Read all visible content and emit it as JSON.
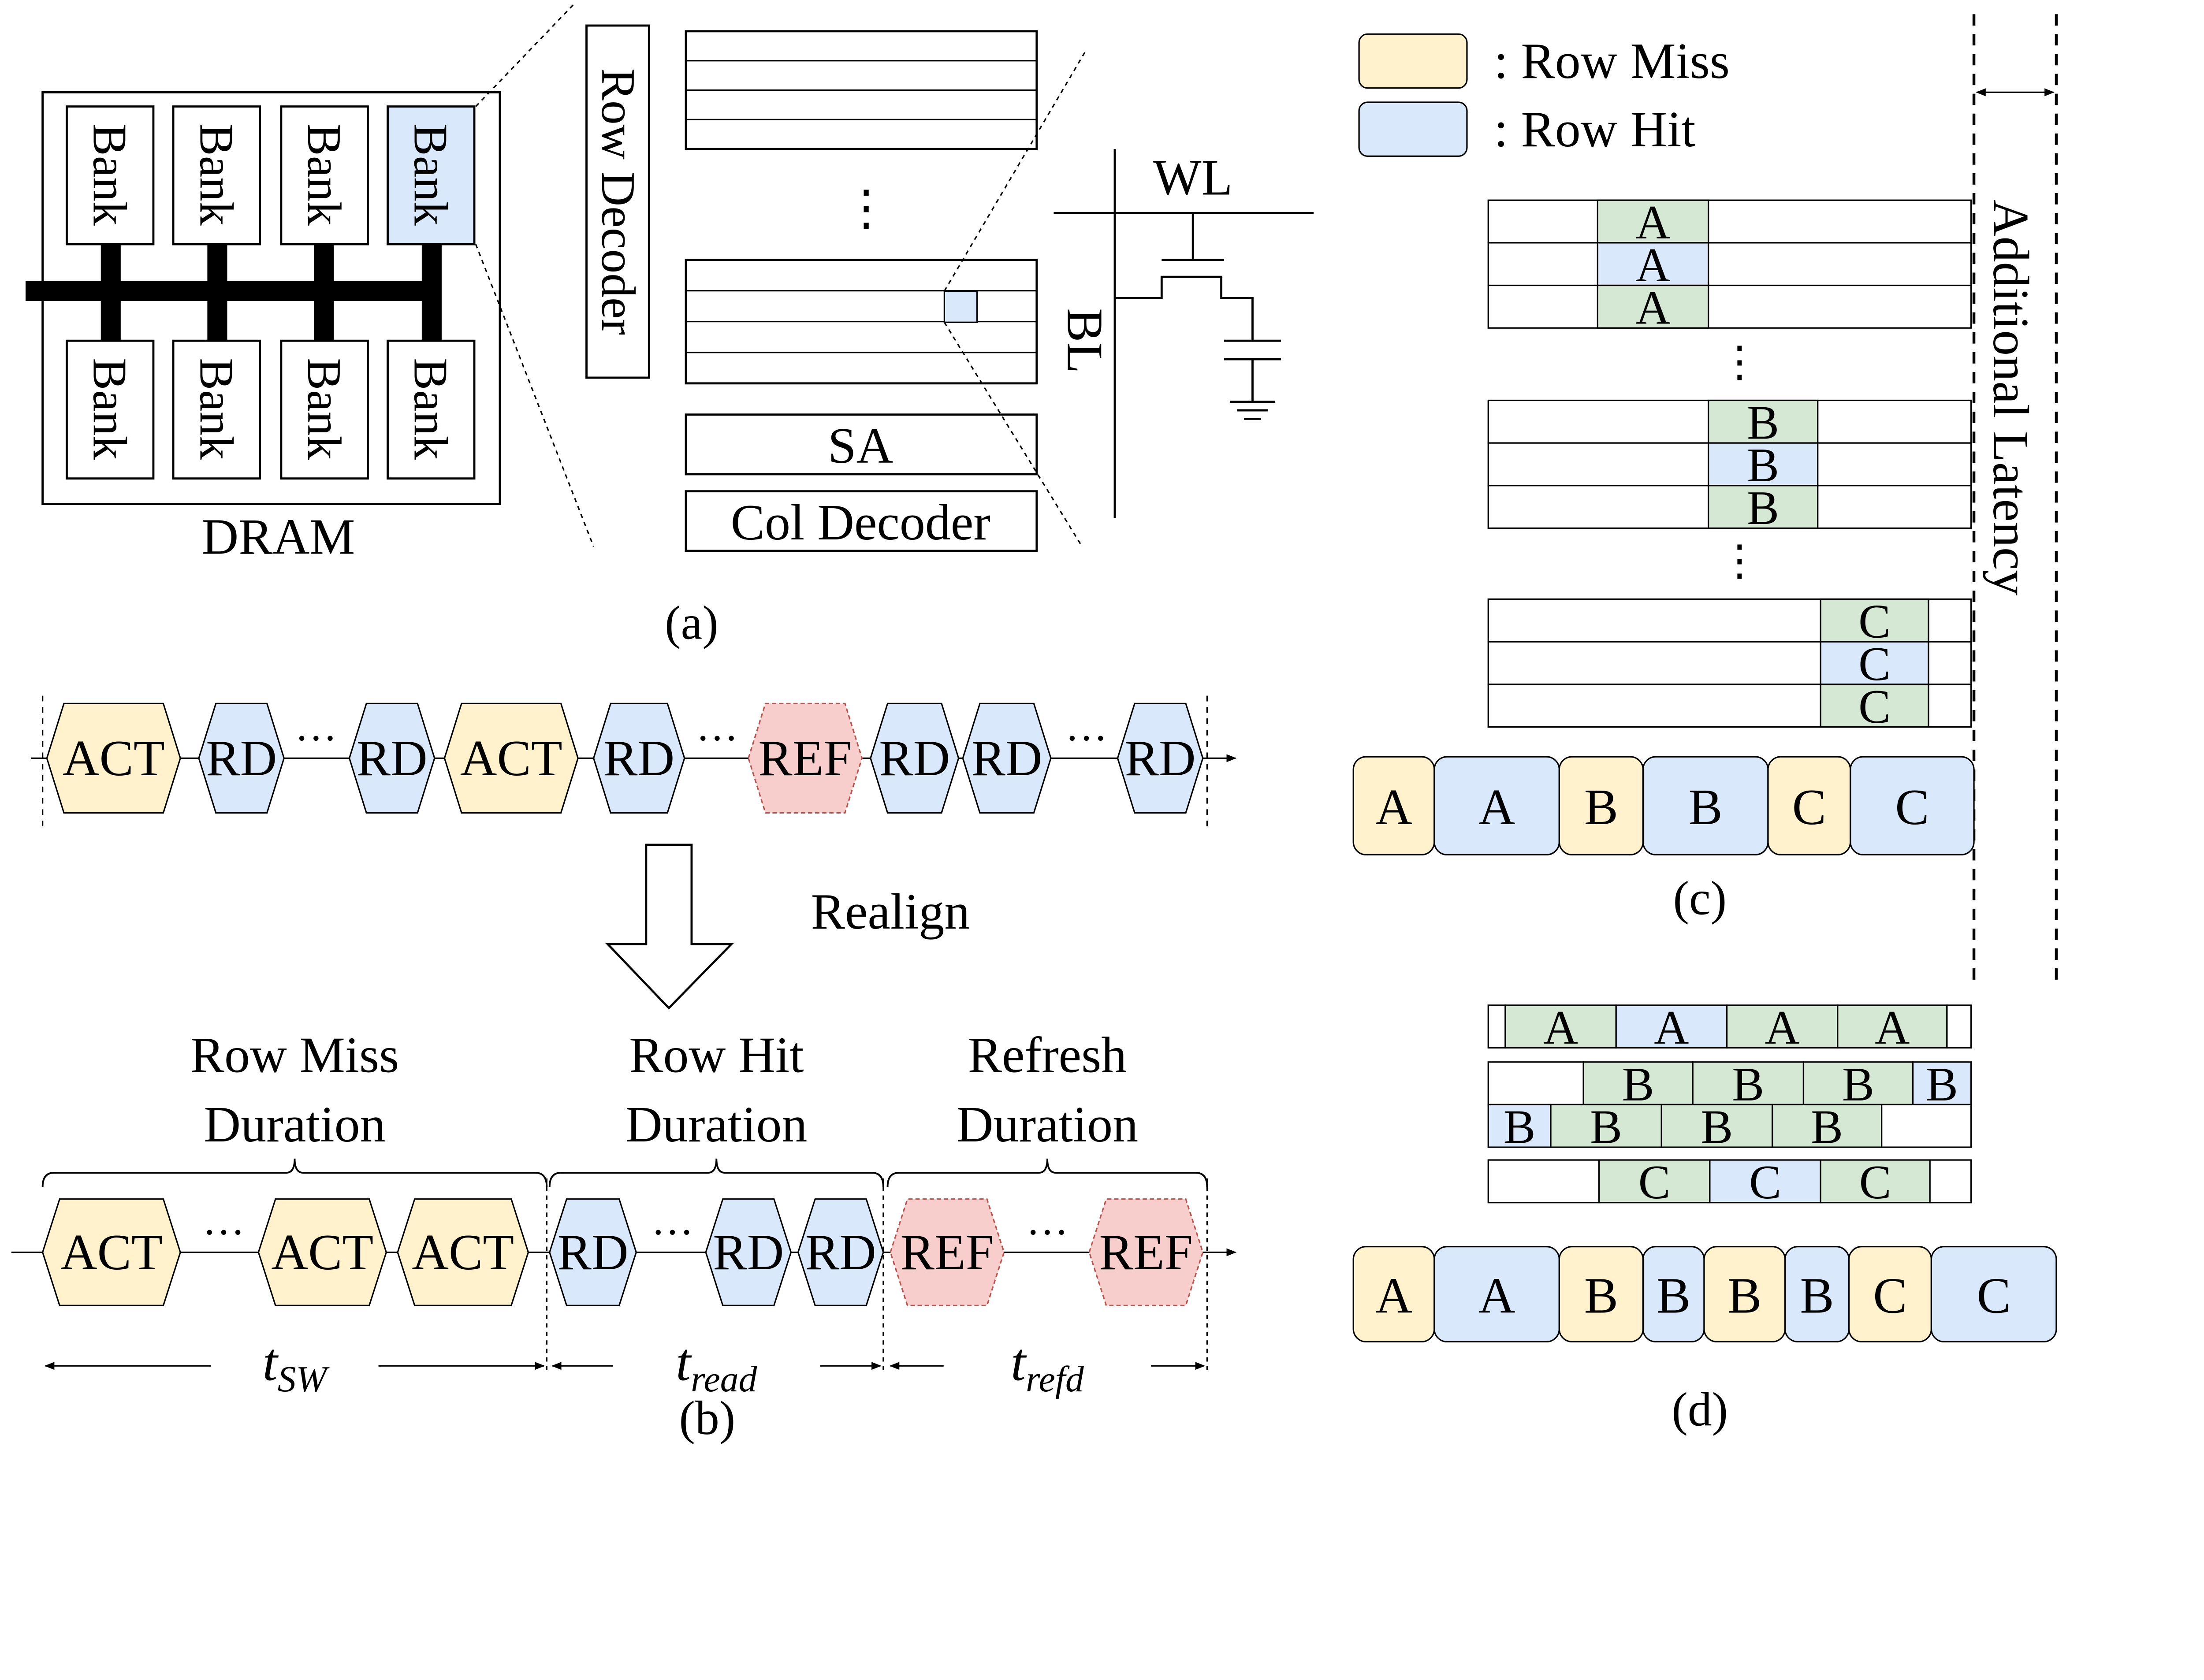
{
  "colors": {
    "row_miss": "#fff2cc",
    "row_hit": "#dae8fc",
    "refresh": "#f8cecc",
    "neutral_hit": "#d5e8d4",
    "stroke": "#000000"
  },
  "panel_a": {
    "banks": [
      "Bank",
      "Bank",
      "Bank",
      "Bank",
      "Bank",
      "Bank",
      "Bank",
      "Bank"
    ],
    "dram_label": "DRAM",
    "row_decoder": "Row Decoder",
    "dots": "⋮",
    "sa": "SA",
    "col_decoder": "Col Decoder",
    "wl": "WL",
    "bl": "BL",
    "caption": "(a)"
  },
  "panel_b": {
    "top_sequence": [
      {
        "label": "ACT",
        "kind": "miss"
      },
      {
        "label": "RD",
        "kind": "hit"
      },
      {
        "label": "···",
        "kind": "dots"
      },
      {
        "label": "RD",
        "kind": "hit"
      },
      {
        "label": "ACT",
        "kind": "miss"
      },
      {
        "label": "RD",
        "kind": "hit"
      },
      {
        "label": "···",
        "kind": "dots"
      },
      {
        "label": "REF",
        "kind": "refresh"
      },
      {
        "label": "RD",
        "kind": "hit"
      },
      {
        "label": "RD",
        "kind": "hit"
      },
      {
        "label": "···",
        "kind": "dots"
      },
      {
        "label": "RD",
        "kind": "hit"
      }
    ],
    "realign": "Realign",
    "bottom_sequence": [
      {
        "label": "ACT",
        "kind": "miss"
      },
      {
        "label": "···",
        "kind": "dots"
      },
      {
        "label": "ACT",
        "kind": "miss"
      },
      {
        "label": "ACT",
        "kind": "miss"
      },
      {
        "label": "RD",
        "kind": "hit"
      },
      {
        "label": "···",
        "kind": "dots"
      },
      {
        "label": "RD",
        "kind": "hit"
      },
      {
        "label": "RD",
        "kind": "hit"
      },
      {
        "label": "REF",
        "kind": "refresh"
      },
      {
        "label": "···",
        "kind": "dots"
      },
      {
        "label": "REF",
        "kind": "refresh"
      }
    ],
    "durations": [
      {
        "line1": "Row Miss",
        "line2": "Duration"
      },
      {
        "line1": "Row Hit",
        "line2": "Duration"
      },
      {
        "line1": "Refresh",
        "line2": "Duration"
      }
    ],
    "times": [
      {
        "t": "t",
        "sub": "SW"
      },
      {
        "t": "t",
        "sub": "read"
      },
      {
        "t": "t",
        "sub": "refd"
      }
    ],
    "caption": "(b)"
  },
  "panel_c": {
    "legend": [
      {
        "label": ": Row Miss",
        "kind": "miss"
      },
      {
        "label": ": Row Hit",
        "kind": "hit"
      }
    ],
    "additional_latency": "Additional Latency",
    "groups": [
      {
        "label": "A",
        "cells": [
          "neutral",
          "hit",
          "neutral"
        ]
      },
      {
        "label": "B",
        "cells": [
          "neutral",
          "hit",
          "neutral"
        ]
      },
      {
        "label": "C",
        "cells": [
          "neutral",
          "hit",
          "neutral"
        ]
      }
    ],
    "dots": "⋮",
    "timeline": [
      {
        "label": "A",
        "kind": "miss"
      },
      {
        "label": "A",
        "kind": "hit"
      },
      {
        "label": "B",
        "kind": "miss"
      },
      {
        "label": "B",
        "kind": "hit"
      },
      {
        "label": "C",
        "kind": "miss"
      },
      {
        "label": "C",
        "kind": "hit"
      }
    ],
    "caption": "(c)"
  },
  "panel_d": {
    "rows": [
      [
        {
          "label": "",
          "kind": "empty"
        },
        {
          "label": "A",
          "kind": "neutral"
        },
        {
          "label": "A",
          "kind": "hit"
        },
        {
          "label": "A",
          "kind": "neutral"
        },
        {
          "label": "A",
          "kind": "neutral"
        },
        {
          "label": "",
          "kind": "empty"
        }
      ],
      [
        {
          "label": "",
          "kind": "empty"
        },
        {
          "label": "B",
          "kind": "neutral"
        },
        {
          "label": "B",
          "kind": "neutral"
        },
        {
          "label": "B",
          "kind": "neutral"
        },
        {
          "label": "B",
          "kind": "hit"
        }
      ],
      [
        {
          "label": "B",
          "kind": "hit"
        },
        {
          "label": "B",
          "kind": "neutral"
        },
        {
          "label": "B",
          "kind": "neutral"
        },
        {
          "label": "B",
          "kind": "neutral"
        },
        {
          "label": "",
          "kind": "empty"
        }
      ],
      [
        {
          "label": "",
          "kind": "empty"
        },
        {
          "label": "C",
          "kind": "neutral"
        },
        {
          "label": "C",
          "kind": "hit"
        },
        {
          "label": "C",
          "kind": "neutral"
        },
        {
          "label": "",
          "kind": "empty"
        }
      ]
    ],
    "timeline": [
      {
        "label": "A",
        "kind": "miss"
      },
      {
        "label": "A",
        "kind": "hit"
      },
      {
        "label": "B",
        "kind": "miss"
      },
      {
        "label": "B",
        "kind": "hit"
      },
      {
        "label": "B",
        "kind": "miss"
      },
      {
        "label": "B",
        "kind": "hit"
      },
      {
        "label": "C",
        "kind": "miss"
      },
      {
        "label": "C",
        "kind": "hit"
      }
    ],
    "caption": "(d)"
  }
}
